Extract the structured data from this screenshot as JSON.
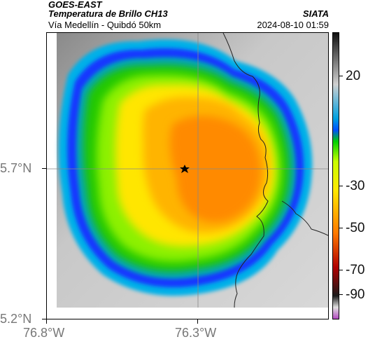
{
  "header": {
    "product": "GOES-EAST",
    "variable": "Temperatura de Brillo CH13",
    "subtitle": "Vía Medellín - Quibdó 50km",
    "datetime": "2024-08-10 01:59",
    "agency": "SIATA"
  },
  "colorbar": {
    "ticks": [
      "20",
      "-30",
      "-50",
      "-70",
      "-90"
    ],
    "colors": [
      "#b24ac0",
      "#e0e0e0",
      "#1a1a1a",
      "#b00000",
      "#ff7a00",
      "#ffe800",
      "#c8ff00",
      "#00d000",
      "#0050ff",
      "#00a0e0",
      "#d0d0d0",
      "#101010"
    ]
  },
  "axes": {
    "y_labels": [
      "5.7°N",
      "5.2°N"
    ],
    "x_labels": [
      "76.8°W",
      "76.3°W"
    ]
  },
  "map": {
    "marker_icon": "star-icon",
    "colors": {
      "background_gray": "#bdbdbd",
      "cold_core": "#ff8a00",
      "mid_cloud": "#ffe400",
      "edge_green": "#44d400",
      "edge_blue": "#1a3cff",
      "edge_cyan": "#00b4e0"
    }
  }
}
